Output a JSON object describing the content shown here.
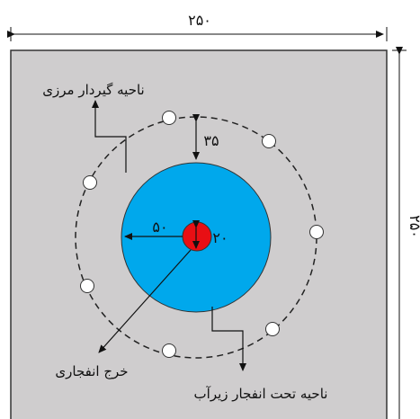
{
  "dimensions": {
    "top_width": "۲۵۰",
    "right_height": "۲۵۰",
    "gap": "۳۵",
    "inner_radius": "۵۰",
    "charge_diameter": "۲۰"
  },
  "labels": {
    "boundary_zone": "ناحیه گیردار مرزی",
    "explosive_charge": "خرج انفجاری",
    "underwater_blast_zone": "ناحیه تحت انفجار زیرآب"
  },
  "colors": {
    "domain_fill": "#cfcdce",
    "water_zone": "#00a8ec",
    "charge": "#e80f14",
    "boundary_nodes": "#ffffff"
  }
}
